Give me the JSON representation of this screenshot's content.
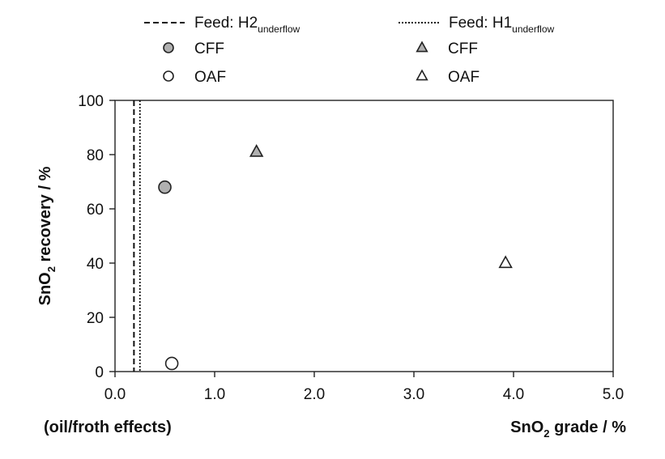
{
  "chart_data": {
    "type": "scatter",
    "xlabel": {
      "main": "SnO",
      "sub": "2",
      "rest": " grade / %"
    },
    "ylabel": {
      "main": "SnO",
      "sub": "2",
      "rest": " recovery / %"
    },
    "x_note": "(oil/froth effects)",
    "xlim": [
      0,
      5
    ],
    "ylim": [
      0,
      100
    ],
    "x_ticks": [
      0,
      1,
      2,
      3,
      4,
      5
    ],
    "x_tick_labels": [
      "0.0",
      "1.0",
      "2.0",
      "3.0",
      "4.0",
      "5.0"
    ],
    "y_ticks": [
      0,
      20,
      40,
      60,
      80,
      100
    ],
    "y_tick_labels": [
      "0",
      "20",
      "40",
      "60",
      "80",
      "100"
    ],
    "grid": false,
    "legend_position": "top",
    "reference_lines": [
      {
        "name": "Feed: H2",
        "sub": "underflow",
        "x": 0.19,
        "style": "dashed"
      },
      {
        "name": "Feed: H1",
        "sub": "underflow",
        "x": 0.25,
        "style": "dotted"
      }
    ],
    "series": [
      {
        "name": "CFF",
        "marker": "circle",
        "fill": "#b0b0b0",
        "points": [
          {
            "x": 0.5,
            "y": 68
          }
        ]
      },
      {
        "name": "OAF",
        "marker": "circle",
        "fill": "#ffffff",
        "points": [
          {
            "x": 0.57,
            "y": 3
          }
        ]
      },
      {
        "name": "CFF",
        "marker": "triangle",
        "fill": "#b0b0b0",
        "points": [
          {
            "x": 1.42,
            "y": 81
          }
        ]
      },
      {
        "name": "OAF",
        "marker": "triangle",
        "fill": "#ffffff",
        "points": [
          {
            "x": 3.92,
            "y": 40
          }
        ]
      }
    ]
  }
}
